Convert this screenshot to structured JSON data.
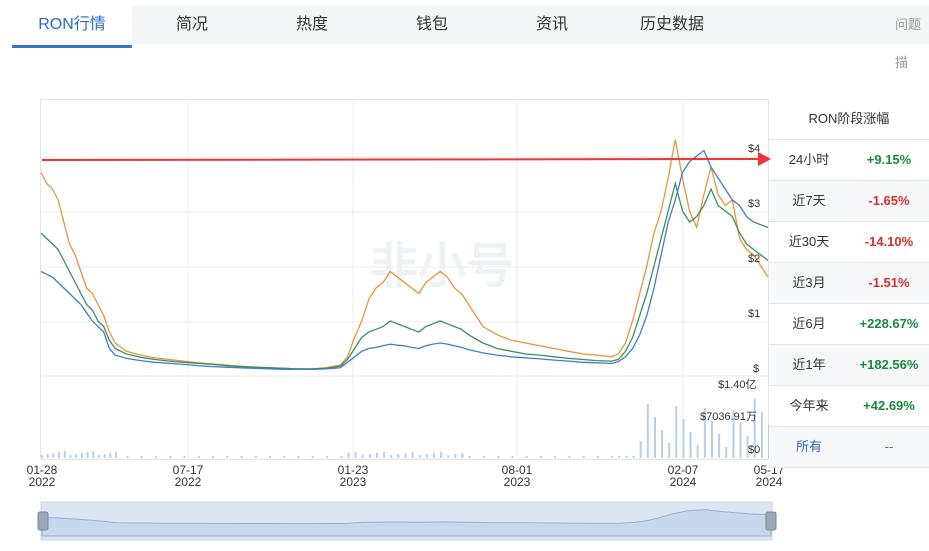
{
  "tabs": [
    {
      "label": "RON行情",
      "active": true
    },
    {
      "label": "简况"
    },
    {
      "label": "热度"
    },
    {
      "label": "钱包"
    },
    {
      "label": "资讯"
    },
    {
      "label": "历史数据"
    }
  ],
  "tab_help": "问题描",
  "watermark": "非小号",
  "performance": {
    "title": "RON阶段涨幅",
    "rows": [
      {
        "label": "24小时",
        "value": "+9.15%",
        "dir": "pos"
      },
      {
        "label": "近7天",
        "value": "-1.65%",
        "dir": "neg"
      },
      {
        "label": "近30天",
        "value": "-14.10%",
        "dir": "neg"
      },
      {
        "label": "近3月",
        "value": "-1.51%",
        "dir": "neg"
      },
      {
        "label": "近6月",
        "value": "+228.67%",
        "dir": "pos"
      },
      {
        "label": "近1年",
        "value": "+182.56%",
        "dir": "pos"
      },
      {
        "label": "今年来",
        "value": "+42.69%",
        "dir": "pos"
      },
      {
        "label": "所有",
        "value": "--",
        "dir": "none"
      }
    ]
  },
  "chart_data": {
    "type": "line",
    "y_axis_ticks": [
      "$4",
      "$3",
      "$2",
      "$1",
      "$",
      "$0"
    ],
    "y_max_label": "$1.40亿",
    "volume_label": "$7036.91万",
    "x_ticks": [
      {
        "date": "01-28",
        "year": "2022"
      },
      {
        "date": "07-17",
        "year": "2022"
      },
      {
        "date": "01-23",
        "year": "2023"
      },
      {
        "date": "08-01",
        "year": "2023"
      },
      {
        "date": "02-07",
        "year": "2024"
      },
      {
        "date": "05-17",
        "year": "2024"
      }
    ],
    "series": [
      {
        "color": "#e8953a"
      },
      {
        "color": "#3a8f5e"
      },
      {
        "color": "#3f7ec9"
      }
    ],
    "orange": [
      [
        0,
        3.7
      ],
      [
        4,
        3.5
      ],
      [
        8,
        3.4
      ],
      [
        12,
        3.2
      ],
      [
        16,
        2.8
      ],
      [
        20,
        2.4
      ],
      [
        24,
        2.2
      ],
      [
        28,
        1.9
      ],
      [
        32,
        1.6
      ],
      [
        36,
        1.5
      ],
      [
        40,
        1.3
      ],
      [
        44,
        1.1
      ],
      [
        48,
        0.8
      ],
      [
        52,
        0.6
      ],
      [
        60,
        0.45
      ],
      [
        70,
        0.38
      ],
      [
        80,
        0.33
      ],
      [
        90,
        0.3
      ],
      [
        100,
        0.27
      ],
      [
        110,
        0.24
      ],
      [
        120,
        0.22
      ],
      [
        130,
        0.2
      ],
      [
        140,
        0.18
      ],
      [
        150,
        0.16
      ],
      [
        160,
        0.15
      ],
      [
        170,
        0.14
      ],
      [
        180,
        0.13
      ],
      [
        190,
        0.13
      ],
      [
        200,
        0.15
      ],
      [
        210,
        0.2
      ],
      [
        215,
        0.35
      ],
      [
        220,
        0.7
      ],
      [
        225,
        1.0
      ],
      [
        230,
        1.4
      ],
      [
        235,
        1.6
      ],
      [
        240,
        1.7
      ],
      [
        245,
        1.9
      ],
      [
        250,
        1.8
      ],
      [
        255,
        1.7
      ],
      [
        260,
        1.6
      ],
      [
        265,
        1.5
      ],
      [
        270,
        1.7
      ],
      [
        275,
        1.8
      ],
      [
        280,
        1.9
      ],
      [
        285,
        1.8
      ],
      [
        290,
        1.6
      ],
      [
        295,
        1.5
      ],
      [
        300,
        1.3
      ],
      [
        310,
        0.9
      ],
      [
        320,
        0.75
      ],
      [
        330,
        0.65
      ],
      [
        340,
        0.6
      ],
      [
        350,
        0.55
      ],
      [
        360,
        0.5
      ],
      [
        370,
        0.45
      ],
      [
        380,
        0.4
      ],
      [
        390,
        0.38
      ],
      [
        400,
        0.35
      ],
      [
        405,
        0.4
      ],
      [
        410,
        0.6
      ],
      [
        415,
        1.0
      ],
      [
        420,
        1.5
      ],
      [
        425,
        2.0
      ],
      [
        430,
        2.6
      ],
      [
        435,
        3.0
      ],
      [
        440,
        3.6
      ],
      [
        445,
        4.3
      ],
      [
        450,
        3.6
      ],
      [
        455,
        3.0
      ],
      [
        460,
        2.7
      ],
      [
        465,
        3.3
      ],
      [
        470,
        3.8
      ],
      [
        475,
        3.3
      ],
      [
        480,
        3.1
      ],
      [
        485,
        3.2
      ],
      [
        490,
        2.5
      ],
      [
        495,
        2.3
      ],
      [
        500,
        2.2
      ],
      [
        505,
        2.0
      ],
      [
        510,
        1.8
      ]
    ],
    "green": [
      [
        0,
        2.6
      ],
      [
        4,
        2.5
      ],
      [
        8,
        2.4
      ],
      [
        12,
        2.3
      ],
      [
        16,
        2.1
      ],
      [
        20,
        1.9
      ],
      [
        24,
        1.7
      ],
      [
        28,
        1.5
      ],
      [
        32,
        1.3
      ],
      [
        36,
        1.2
      ],
      [
        40,
        1.0
      ],
      [
        44,
        0.9
      ],
      [
        48,
        0.65
      ],
      [
        52,
        0.5
      ],
      [
        60,
        0.4
      ],
      [
        70,
        0.34
      ],
      [
        80,
        0.3
      ],
      [
        90,
        0.27
      ],
      [
        100,
        0.25
      ],
      [
        110,
        0.23
      ],
      [
        120,
        0.21
      ],
      [
        130,
        0.19
      ],
      [
        140,
        0.17
      ],
      [
        150,
        0.16
      ],
      [
        160,
        0.15
      ],
      [
        170,
        0.14
      ],
      [
        180,
        0.13
      ],
      [
        190,
        0.13
      ],
      [
        200,
        0.14
      ],
      [
        210,
        0.18
      ],
      [
        215,
        0.3
      ],
      [
        220,
        0.5
      ],
      [
        225,
        0.7
      ],
      [
        230,
        0.8
      ],
      [
        235,
        0.85
      ],
      [
        240,
        0.9
      ],
      [
        245,
        1.0
      ],
      [
        250,
        0.95
      ],
      [
        255,
        0.9
      ],
      [
        260,
        0.85
      ],
      [
        265,
        0.8
      ],
      [
        270,
        0.9
      ],
      [
        275,
        0.95
      ],
      [
        280,
        1.0
      ],
      [
        285,
        0.95
      ],
      [
        290,
        0.9
      ],
      [
        295,
        0.85
      ],
      [
        300,
        0.75
      ],
      [
        310,
        0.6
      ],
      [
        320,
        0.5
      ],
      [
        330,
        0.45
      ],
      [
        340,
        0.4
      ],
      [
        350,
        0.38
      ],
      [
        360,
        0.35
      ],
      [
        370,
        0.32
      ],
      [
        380,
        0.3
      ],
      [
        390,
        0.28
      ],
      [
        400,
        0.27
      ],
      [
        405,
        0.3
      ],
      [
        410,
        0.45
      ],
      [
        415,
        0.7
      ],
      [
        420,
        1.1
      ],
      [
        425,
        1.5
      ],
      [
        430,
        2.0
      ],
      [
        435,
        2.5
      ],
      [
        440,
        3.0
      ],
      [
        445,
        3.5
      ],
      [
        450,
        3.0
      ],
      [
        455,
        2.8
      ],
      [
        460,
        2.9
      ],
      [
        465,
        3.1
      ],
      [
        470,
        3.4
      ],
      [
        475,
        3.1
      ],
      [
        480,
        3.0
      ],
      [
        485,
        2.9
      ],
      [
        490,
        2.6
      ],
      [
        495,
        2.4
      ],
      [
        500,
        2.3
      ],
      [
        505,
        2.2
      ],
      [
        510,
        2.1
      ]
    ],
    "blue": [
      [
        0,
        1.9
      ],
      [
        4,
        1.85
      ],
      [
        8,
        1.8
      ],
      [
        12,
        1.7
      ],
      [
        16,
        1.6
      ],
      [
        20,
        1.5
      ],
      [
        24,
        1.4
      ],
      [
        28,
        1.3
      ],
      [
        32,
        1.15
      ],
      [
        36,
        1.0
      ],
      [
        40,
        0.9
      ],
      [
        44,
        0.8
      ],
      [
        48,
        0.5
      ],
      [
        52,
        0.38
      ],
      [
        60,
        0.32
      ],
      [
        70,
        0.28
      ],
      [
        80,
        0.25
      ],
      [
        90,
        0.23
      ],
      [
        100,
        0.21
      ],
      [
        110,
        0.19
      ],
      [
        120,
        0.17
      ],
      [
        130,
        0.16
      ],
      [
        140,
        0.15
      ],
      [
        150,
        0.14
      ],
      [
        160,
        0.13
      ],
      [
        170,
        0.12
      ],
      [
        180,
        0.12
      ],
      [
        190,
        0.12
      ],
      [
        200,
        0.13
      ],
      [
        210,
        0.15
      ],
      [
        215,
        0.25
      ],
      [
        220,
        0.35
      ],
      [
        225,
        0.45
      ],
      [
        230,
        0.5
      ],
      [
        235,
        0.52
      ],
      [
        240,
        0.55
      ],
      [
        245,
        0.58
      ],
      [
        250,
        0.56
      ],
      [
        255,
        0.55
      ],
      [
        260,
        0.52
      ],
      [
        265,
        0.5
      ],
      [
        270,
        0.55
      ],
      [
        275,
        0.58
      ],
      [
        280,
        0.6
      ],
      [
        285,
        0.58
      ],
      [
        290,
        0.55
      ],
      [
        295,
        0.52
      ],
      [
        300,
        0.48
      ],
      [
        310,
        0.42
      ],
      [
        320,
        0.38
      ],
      [
        330,
        0.35
      ],
      [
        340,
        0.33
      ],
      [
        350,
        0.31
      ],
      [
        360,
        0.29
      ],
      [
        370,
        0.27
      ],
      [
        380,
        0.25
      ],
      [
        390,
        0.24
      ],
      [
        400,
        0.23
      ],
      [
        405,
        0.26
      ],
      [
        410,
        0.35
      ],
      [
        415,
        0.5
      ],
      [
        420,
        0.75
      ],
      [
        425,
        1.1
      ],
      [
        430,
        1.6
      ],
      [
        435,
        2.2
      ],
      [
        440,
        2.8
      ],
      [
        445,
        3.2
      ],
      [
        450,
        3.7
      ],
      [
        455,
        3.9
      ],
      [
        460,
        4.0
      ],
      [
        465,
        4.1
      ],
      [
        470,
        3.8
      ],
      [
        475,
        3.6
      ],
      [
        480,
        3.4
      ],
      [
        485,
        3.2
      ],
      [
        490,
        3.1
      ],
      [
        495,
        2.9
      ],
      [
        500,
        2.8
      ],
      [
        505,
        2.75
      ],
      [
        510,
        2.7
      ]
    ]
  }
}
